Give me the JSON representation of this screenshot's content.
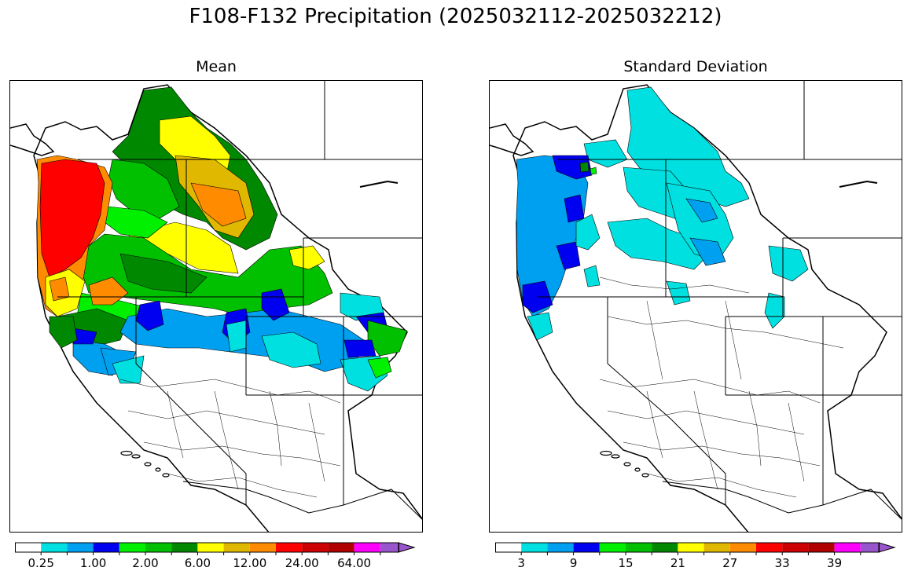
{
  "title": "F108-F132 Precipitation (2025032112-2025032212)",
  "panels": [
    {
      "title": "Mean",
      "colorbar": {
        "colors": [
          "#ffffff",
          "#00e0e0",
          "#00a0f0",
          "#0000f0",
          "#00f000",
          "#00c000",
          "#008800",
          "#ffff00",
          "#e0b800",
          "#ff8c00",
          "#ff0000",
          "#cc0000",
          "#b00000",
          "#ff00ff",
          "#9955cc"
        ],
        "labels": [
          "0.25",
          "1.00",
          "2.00",
          "6.00",
          "12.00",
          "24.00",
          "64.00"
        ],
        "label_bins": [
          1,
          3,
          5,
          7,
          9,
          11,
          13
        ]
      }
    },
    {
      "title": "Standard Deviation",
      "colorbar": {
        "colors": [
          "#ffffff",
          "#00e0e0",
          "#00a0f0",
          "#0000f0",
          "#00f000",
          "#00c000",
          "#008800",
          "#ffff00",
          "#e0b800",
          "#ff8c00",
          "#ff0000",
          "#cc0000",
          "#b00000",
          "#ff00ff",
          "#9955cc"
        ],
        "labels": [
          "3",
          "9",
          "15",
          "21",
          "27",
          "33",
          "39"
        ],
        "label_bins": [
          1,
          3,
          5,
          7,
          9,
          11,
          13
        ]
      }
    }
  ]
}
